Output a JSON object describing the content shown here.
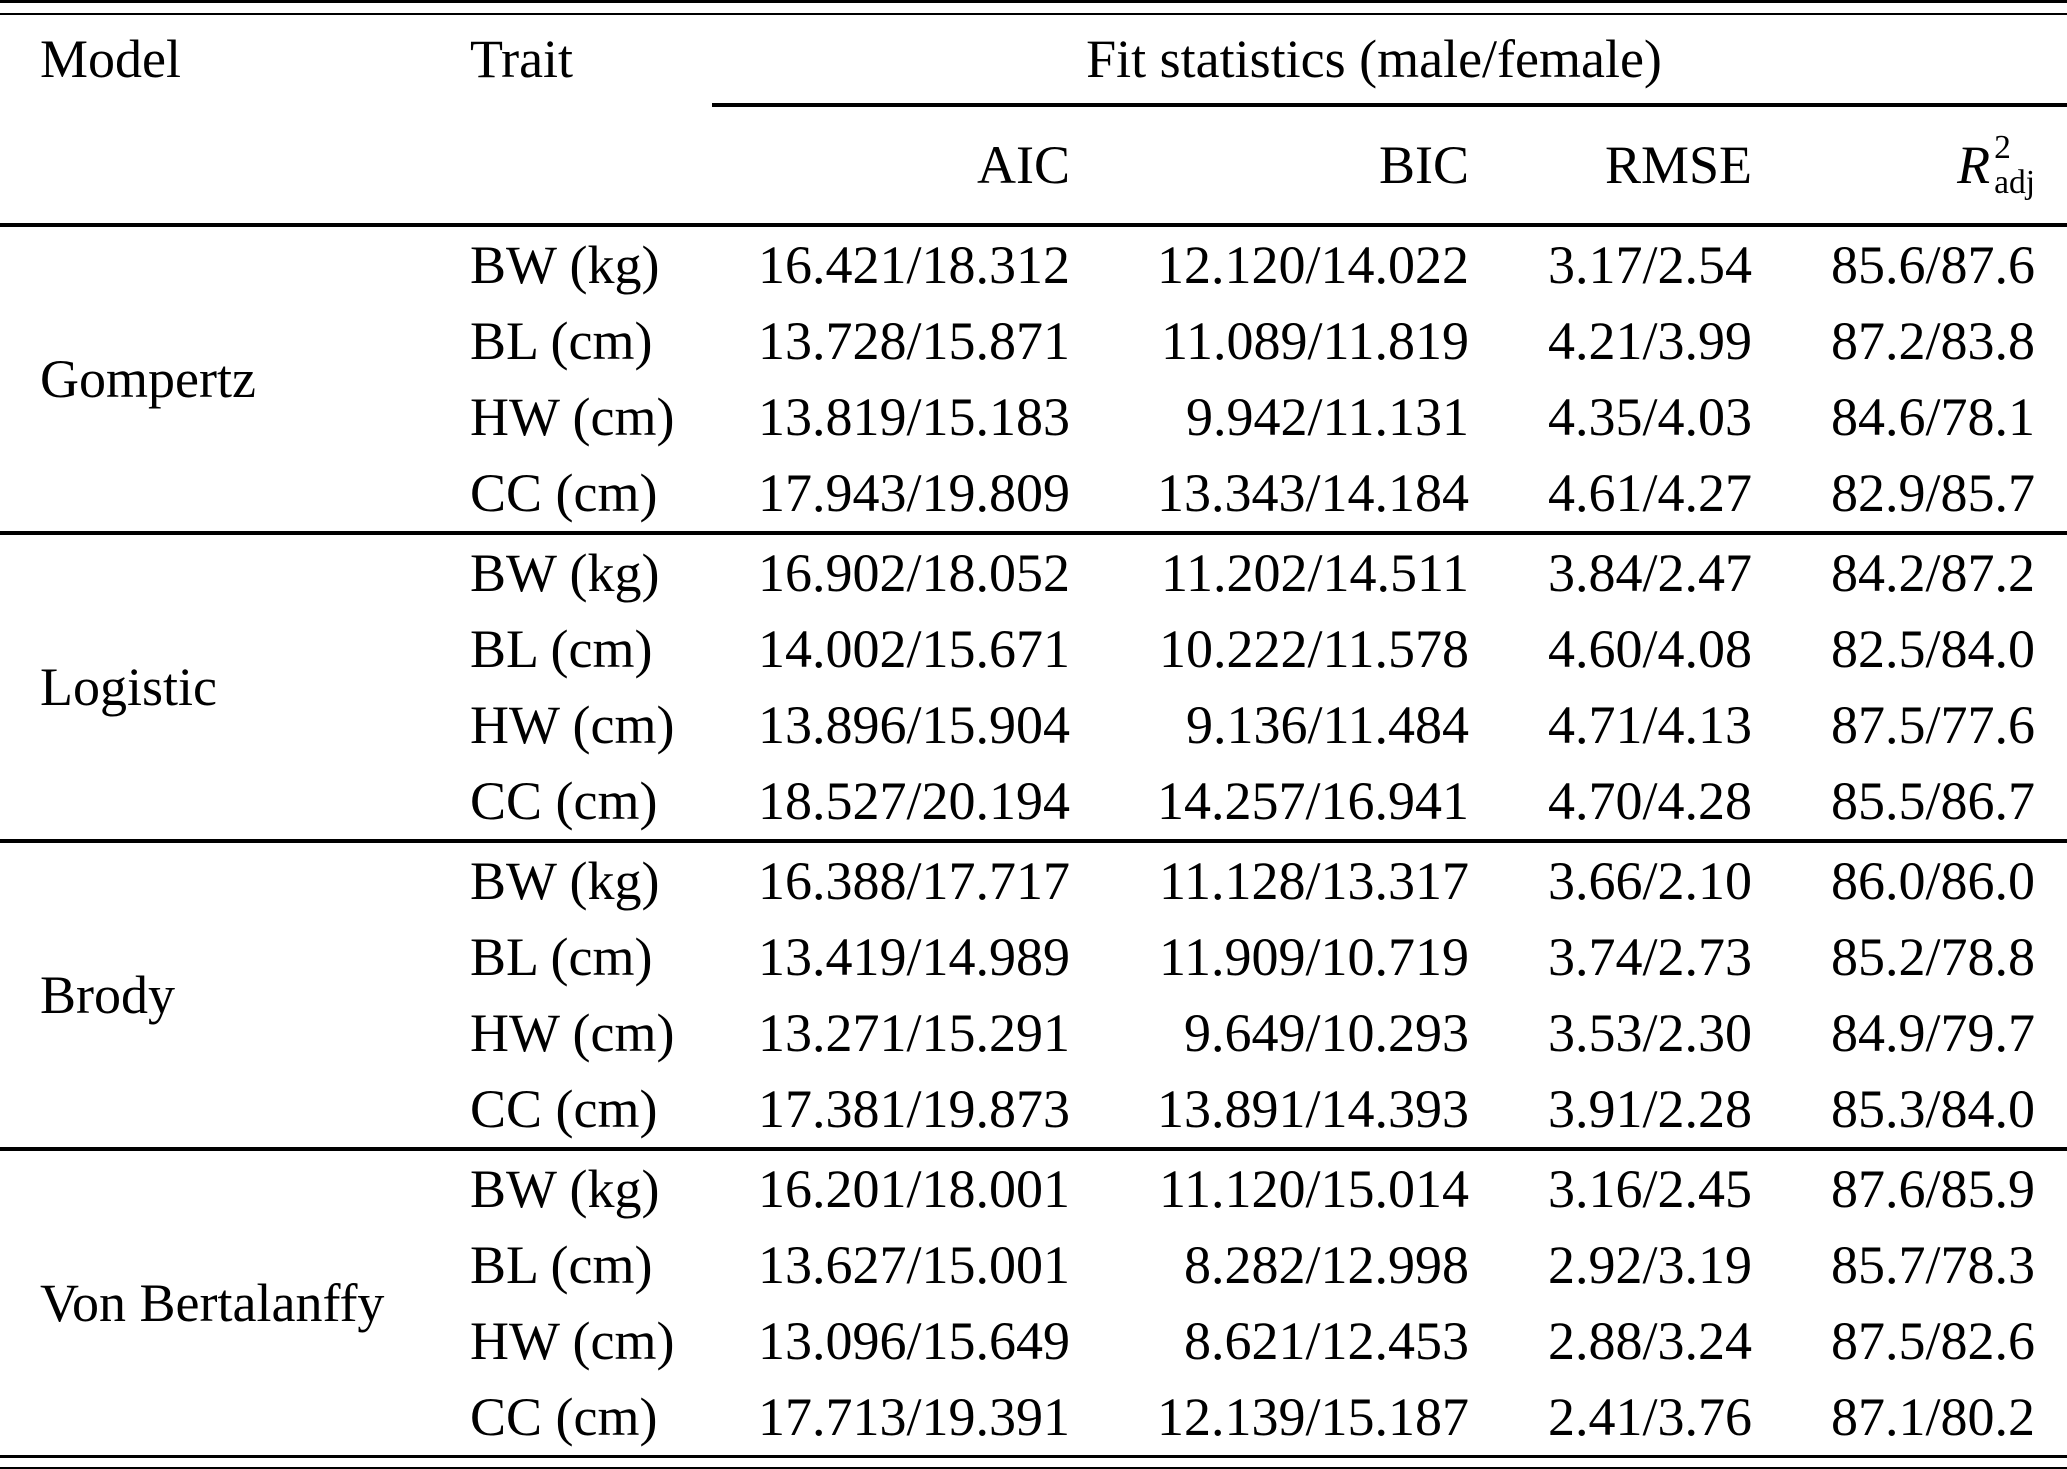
{
  "table": {
    "header": {
      "model": "Model",
      "trait": "Trait",
      "fit_stats_group": "Fit statistics (male/female)",
      "aic": "AIC",
      "bic": "BIC",
      "rmse": "RMSE",
      "r2": {
        "base": "R",
        "sup": "2",
        "sub": "adj"
      }
    },
    "blocks": [
      {
        "model": "Gompertz",
        "rows": [
          {
            "trait": "BW (kg)",
            "aic": "16.421/18.312",
            "bic": "12.120/14.022",
            "rmse": "3.17/2.54",
            "r2adj": "85.6/87.6"
          },
          {
            "trait": "BL (cm)",
            "aic": "13.728/15.871",
            "bic": "11.089/11.819",
            "rmse": "4.21/3.99",
            "r2adj": "87.2/83.8"
          },
          {
            "trait": "HW (cm)",
            "aic": "13.819/15.183",
            "bic": "9.942/11.131",
            "rmse": "4.35/4.03",
            "r2adj": "84.6/78.1"
          },
          {
            "trait": "CC (cm)",
            "aic": "17.943/19.809",
            "bic": "13.343/14.184",
            "rmse": "4.61/4.27",
            "r2adj": "82.9/85.7"
          }
        ]
      },
      {
        "model": "Logistic",
        "rows": [
          {
            "trait": "BW (kg)",
            "aic": "16.902/18.052",
            "bic": "11.202/14.511",
            "rmse": "3.84/2.47",
            "r2adj": "84.2/87.2"
          },
          {
            "trait": "BL (cm)",
            "aic": "14.002/15.671",
            "bic": "10.222/11.578",
            "rmse": "4.60/4.08",
            "r2adj": "82.5/84.0"
          },
          {
            "trait": "HW (cm)",
            "aic": "13.896/15.904",
            "bic": "9.136/11.484",
            "rmse": "4.71/4.13",
            "r2adj": "87.5/77.6"
          },
          {
            "trait": "CC (cm)",
            "aic": "18.527/20.194",
            "bic": "14.257/16.941",
            "rmse": "4.70/4.28",
            "r2adj": "85.5/86.7"
          }
        ]
      },
      {
        "model": "Brody",
        "rows": [
          {
            "trait": "BW (kg)",
            "aic": "16.388/17.717",
            "bic": "11.128/13.317",
            "rmse": "3.66/2.10",
            "r2adj": "86.0/86.0"
          },
          {
            "trait": "BL (cm)",
            "aic": "13.419/14.989",
            "bic": "11.909/10.719",
            "rmse": "3.74/2.73",
            "r2adj": "85.2/78.8"
          },
          {
            "trait": "HW (cm)",
            "aic": "13.271/15.291",
            "bic": "9.649/10.293",
            "rmse": "3.53/2.30",
            "r2adj": "84.9/79.7"
          },
          {
            "trait": "CC (cm)",
            "aic": "17.381/19.873",
            "bic": "13.891/14.393",
            "rmse": "3.91/2.28",
            "r2adj": "85.3/84.0"
          }
        ]
      },
      {
        "model": "Von Bertalanffy",
        "rows": [
          {
            "trait": "BW (kg)",
            "aic": "16.201/18.001",
            "bic": "11.120/15.014",
            "rmse": "3.16/2.45",
            "r2adj": "87.6/85.9"
          },
          {
            "trait": "BL (cm)",
            "aic": "13.627/15.001",
            "bic": "8.282/12.998",
            "rmse": "2.92/3.19",
            "r2adj": "85.7/78.3"
          },
          {
            "trait": "HW (cm)",
            "aic": "13.096/15.649",
            "bic": "8.621/12.453",
            "rmse": "2.88/3.24",
            "r2adj": "87.5/82.6"
          },
          {
            "trait": "CC (cm)",
            "aic": "17.713/19.391",
            "bic": "12.139/15.187",
            "rmse": "2.41/3.76",
            "r2adj": "87.1/80.2"
          }
        ]
      }
    ]
  },
  "colors": {
    "text": "#000000",
    "background": "#ffffff",
    "rule": "#000000"
  }
}
